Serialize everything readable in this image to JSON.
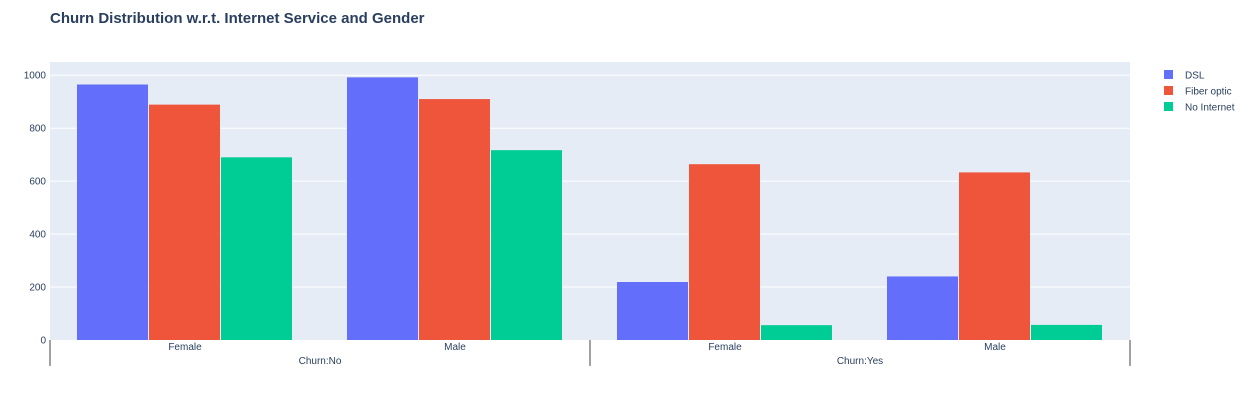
{
  "chart_data": {
    "type": "bar",
    "title": "Churn Distribution w.r.t. Internet Service and Gender",
    "xlabel": "",
    "ylabel": "",
    "ylim": [
      0,
      1050
    ],
    "yticks": [
      0,
      200,
      400,
      600,
      800,
      1000
    ],
    "groups": [
      {
        "label": "Churn:No",
        "categories": [
          "Female",
          "Male"
        ]
      },
      {
        "label": "Churn:Yes",
        "categories": [
          "Female",
          "Male"
        ]
      }
    ],
    "series": [
      {
        "name": "DSL",
        "color": "#636efa",
        "values": [
          965,
          992,
          219,
          240
        ]
      },
      {
        "name": "Fiber optic",
        "color": "#ef553b",
        "values": [
          889,
          910,
          664,
          633
        ]
      },
      {
        "name": "No Internet",
        "color": "#00cc96",
        "values": [
          690,
          717,
          56,
          57
        ]
      }
    ],
    "grid": true,
    "legend_position": "top-right"
  }
}
